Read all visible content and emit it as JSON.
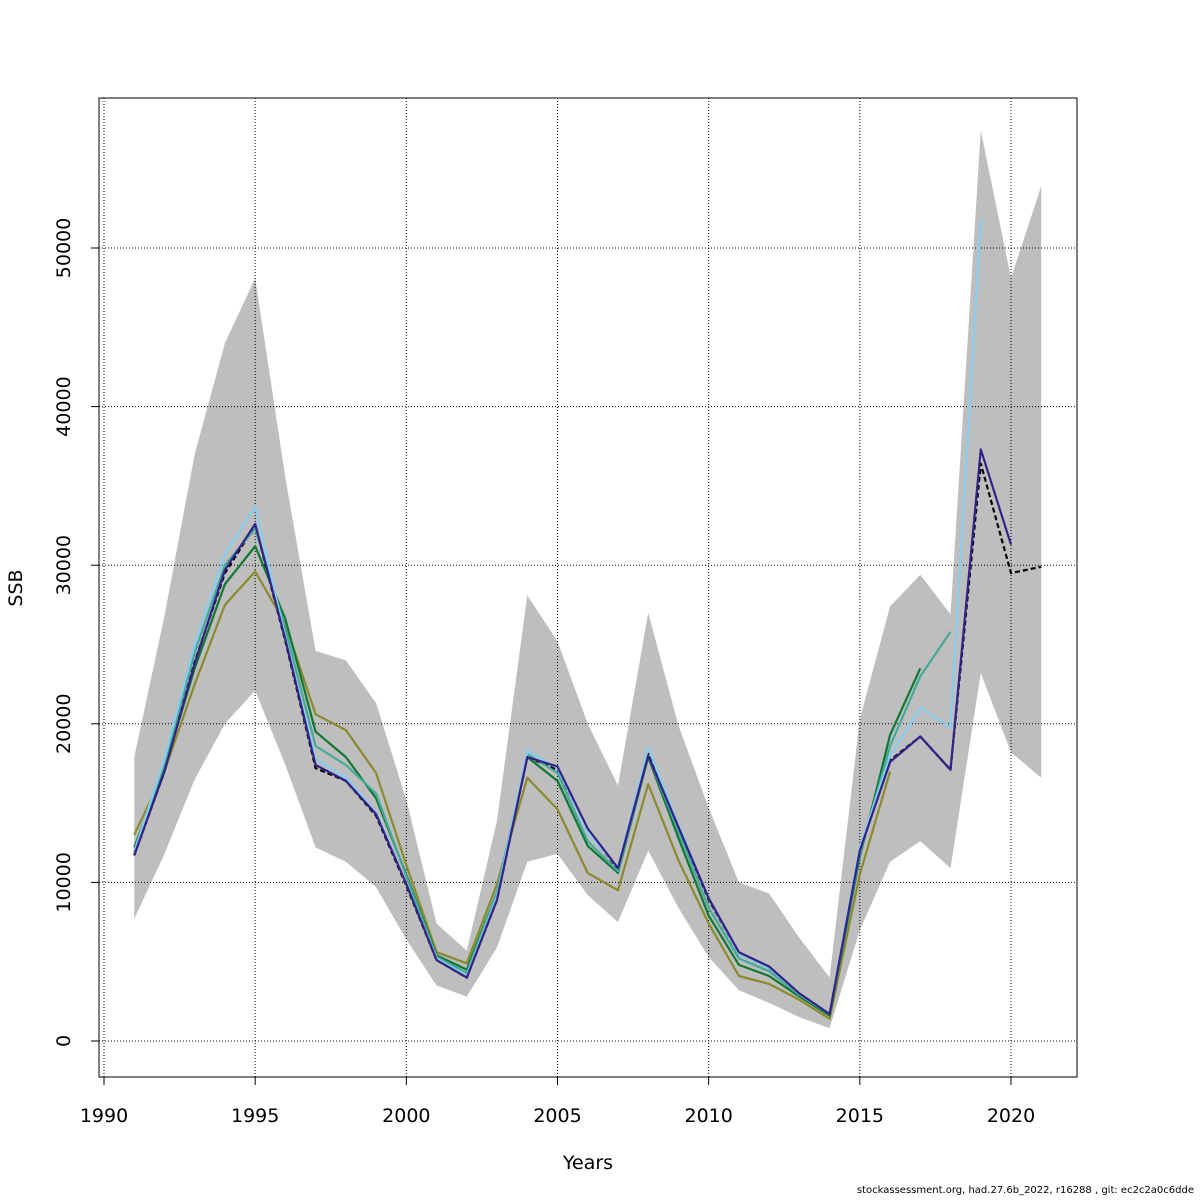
{
  "chart_data": {
    "type": "line",
    "title": "",
    "xlabel": "Years",
    "ylabel": "SSB",
    "xlim": [
      1990,
      2022
    ],
    "ylim": [
      0,
      57000
    ],
    "x_ticks": [
      1990,
      1995,
      2000,
      2005,
      2010,
      2015,
      2020
    ],
    "y_ticks": [
      0,
      10000,
      20000,
      30000,
      40000,
      50000
    ],
    "x_tick_labels": [
      "1990",
      "1995",
      "2000",
      "2005",
      "2010",
      "2015",
      "2020"
    ],
    "y_tick_labels": [
      "0",
      "10000",
      "20000",
      "30000",
      "40000",
      "50000"
    ],
    "grid": true,
    "confidence_band": {
      "color": "#bebebe",
      "x": [
        1991,
        1992,
        1993,
        1994,
        1995,
        1996,
        1997,
        1998,
        1999,
        2000,
        2001,
        2002,
        2003,
        2004,
        2005,
        2006,
        2007,
        2008,
        2009,
        2010,
        2011,
        2012,
        2013,
        2014,
        2015,
        2016,
        2017,
        2018,
        2019,
        2020,
        2021
      ],
      "lower": [
        7700,
        11800,
        16500,
        20000,
        22100,
        17400,
        12200,
        11300,
        9700,
        6400,
        3500,
        2800,
        5900,
        11300,
        11800,
        9200,
        7500,
        12000,
        8400,
        5300,
        3200,
        2400,
        1500,
        800,
        7000,
        11300,
        12600,
        10900,
        23200,
        18200,
        16600
      ],
      "upper": [
        17900,
        26800,
        37000,
        44000,
        48100,
        35500,
        24600,
        24000,
        21300,
        15200,
        7400,
        5700,
        13900,
        28100,
        25200,
        20000,
        16100,
        27000,
        19900,
        14700,
        10000,
        9300,
        6500,
        4000,
        20300,
        27400,
        29400,
        26900,
        57400,
        48100,
        53900
      ]
    },
    "series": [
      {
        "color": "#000000",
        "dashed": true,
        "x": [
          1991,
          1992,
          1993,
          1994,
          1995,
          1996,
          1997,
          1998,
          1999,
          2000,
          2001,
          2002,
          2003,
          2004,
          2005,
          2006,
          2007,
          2008,
          2009,
          2010,
          2011,
          2012,
          2013,
          2014,
          2015,
          2016,
          2017,
          2018,
          2019,
          2020,
          2021
        ],
        "values": [
          11700,
          17000,
          23900,
          29500,
          32500,
          25200,
          17200,
          16400,
          14200,
          9800,
          5100,
          4000,
          8900,
          17900,
          17100,
          13300,
          10800,
          18100,
          13500,
          8900,
          5500,
          4600,
          2900,
          1700,
          12000,
          17700,
          19200,
          17100,
          36400,
          29500,
          29900
        ]
      },
      {
        "color": "#8a8a2e",
        "dashed": false,
        "x": [
          1991,
          1992,
          1993,
          1994,
          1995,
          1996,
          1997,
          1998,
          1999,
          2000,
          2001,
          2002,
          2003,
          2004,
          2005,
          2006,
          2007,
          2008,
          2009,
          2010,
          2011,
          2012,
          2013,
          2014,
          2015,
          2016
        ],
        "values": [
          13000,
          17000,
          22500,
          27500,
          29600,
          26300,
          20600,
          19600,
          16900,
          11100,
          5600,
          4900,
          9900,
          16600,
          14600,
          10600,
          9500,
          16200,
          11400,
          7400,
          4100,
          3600,
          2600,
          1400,
          10500,
          17000
        ]
      },
      {
        "color": "#117733",
        "dashed": false,
        "x": [
          1991,
          1992,
          1993,
          1994,
          1995,
          1996,
          1997,
          1998,
          1999,
          2000,
          2001,
          2002,
          2003,
          2004,
          2005,
          2006,
          2007,
          2008,
          2009,
          2010,
          2011,
          2012,
          2013,
          2014,
          2015,
          2016,
          2017
        ],
        "values": [
          12200,
          17200,
          23500,
          28800,
          31200,
          26600,
          19500,
          17900,
          15300,
          10500,
          5400,
          4500,
          9400,
          17900,
          16400,
          12300,
          10600,
          17900,
          12800,
          7900,
          4800,
          4100,
          2800,
          1600,
          11600,
          19300,
          23500
        ]
      },
      {
        "color": "#44aa99",
        "dashed": false,
        "x": [
          1991,
          1992,
          1993,
          1994,
          1995,
          1996,
          1997,
          1998,
          1999,
          2000,
          2001,
          2002,
          2003,
          2004,
          2005,
          2006,
          2007,
          2008,
          2009,
          2010,
          2011,
          2012,
          2013,
          2014,
          2015,
          2016,
          2017,
          2018
        ],
        "values": [
          12000,
          17500,
          24500,
          30000,
          32300,
          26000,
          18600,
          17400,
          15600,
          10400,
          5300,
          4300,
          9400,
          18100,
          16900,
          12600,
          10700,
          18000,
          13200,
          8400,
          5200,
          4400,
          2900,
          1700,
          11800,
          18600,
          23000,
          25800
        ]
      },
      {
        "color": "#88ccee",
        "dashed": false,
        "x": [
          1991,
          1992,
          1993,
          1994,
          1995,
          1996,
          1997,
          1998,
          1999,
          2000,
          2001,
          2002,
          2003,
          2004,
          2005,
          2006,
          2007,
          2008,
          2009,
          2010,
          2011,
          2012,
          2013,
          2014,
          2015,
          2016,
          2017,
          2018,
          2019
        ],
        "values": [
          11900,
          17800,
          25000,
          30700,
          33700,
          25400,
          17800,
          16600,
          14400,
          9900,
          5200,
          4100,
          9100,
          18300,
          17200,
          13200,
          10900,
          18500,
          13600,
          9000,
          5500,
          4600,
          3000,
          1700,
          12200,
          18000,
          21000,
          19800,
          51800
        ]
      },
      {
        "color": "#332288",
        "dashed": false,
        "x": [
          1991,
          1992,
          1993,
          1994,
          1995,
          1996,
          1997,
          1998,
          1999,
          2000,
          2001,
          2002,
          2003,
          2004,
          2005,
          2006,
          2007,
          2008,
          2009,
          2010,
          2011,
          2012,
          2013,
          2014,
          2015,
          2016,
          2017,
          2018,
          2019,
          2020
        ],
        "values": [
          11700,
          17000,
          23800,
          29700,
          32600,
          25300,
          17400,
          16400,
          14300,
          9900,
          5100,
          4000,
          8900,
          17900,
          17300,
          13400,
          10900,
          18000,
          13500,
          9000,
          5600,
          4700,
          3000,
          1700,
          12000,
          17600,
          19200,
          17100,
          37300,
          31300
        ]
      }
    ]
  },
  "footnote": "stockassessment.org, had.27.6b_2022, r16288 , git: ec2c2a0c6dde"
}
